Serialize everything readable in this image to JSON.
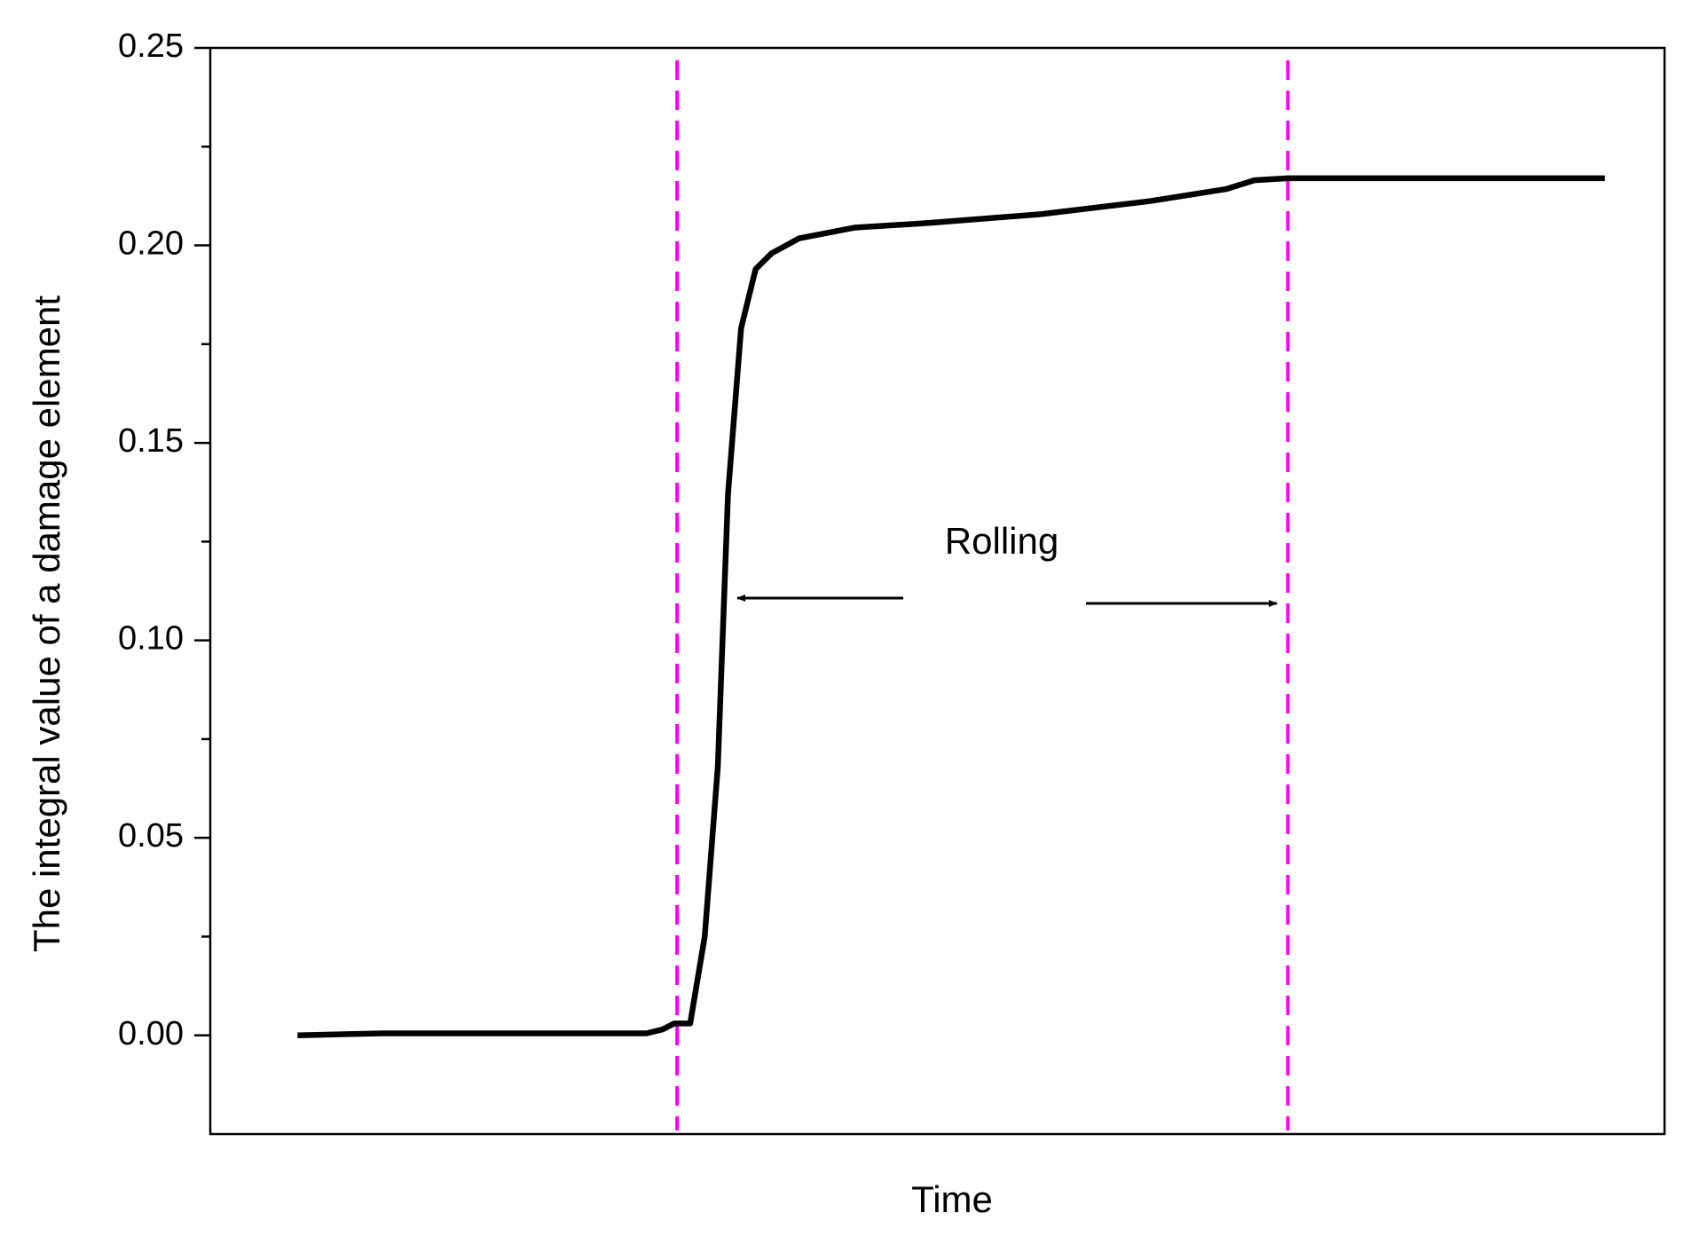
{
  "chart_data": {
    "type": "line",
    "x_label": "Time",
    "y_label": "The integral value of a damage element",
    "annotation": "Rolling",
    "xlim": [
      0,
      100
    ],
    "ylim": [
      -0.025,
      0.25
    ],
    "yticks": [
      {
        "value": 0,
        "label": "0.00"
      },
      {
        "value": 0.05,
        "label": "0.05"
      },
      {
        "value": 0.1,
        "label": "0.10"
      },
      {
        "value": 0.15,
        "label": "0.15"
      },
      {
        "value": 0.2,
        "label": "0.20"
      },
      {
        "value": 0.25,
        "label": "0.25"
      }
    ],
    "yminorticks": [
      0.025,
      0.075,
      0.125,
      0.175,
      0.225
    ],
    "vlines": [
      32.1,
      74.1
    ],
    "vline_color": "#ff00ff",
    "series": [
      {
        "color": "#000000",
        "x": [
          6.0,
          11.9,
          30.0,
          31.1,
          31.9,
          33.0,
          34.0,
          34.9,
          35.6,
          36.5,
          37.5,
          38.6,
          40.5,
          44.3,
          49.5,
          57.1,
          64.6,
          69.9,
          71.8,
          74.1,
          95.9
        ],
        "values": [
          0.0,
          0.0005,
          0.0005,
          0.0015,
          0.003,
          0.003,
          0.025,
          0.068,
          0.137,
          0.179,
          0.194,
          0.198,
          0.2018,
          0.2045,
          0.2057,
          0.2079,
          0.2112,
          0.2143,
          0.2165,
          0.217,
          0.217
        ]
      }
    ]
  }
}
